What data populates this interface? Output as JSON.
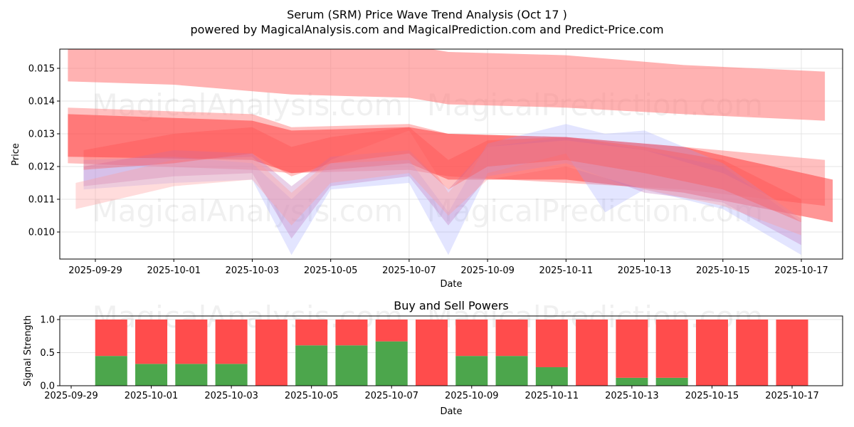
{
  "chart_data": [
    {
      "type": "area",
      "title": "Serum (SRM) Price Wave Trend Analysis (Oct 17 )",
      "subtitle": "powered by MagicalAnalysis.com and MagicalPrediction.com and Predict-Price.com",
      "xlabel": "Date",
      "ylabel": "Price",
      "ylim": [
        0.0092,
        0.0156
      ],
      "xlim": [
        "2025-09-28",
        "2025-10-18"
      ],
      "grid": true,
      "yticks": [
        "0.010",
        "0.011",
        "0.012",
        "0.013",
        "0.014",
        "0.015"
      ],
      "ytick_values": [
        0.01,
        0.011,
        0.012,
        0.013,
        0.014,
        0.015
      ],
      "xticks": [
        "2025-09-29",
        "2025-10-01",
        "2025-10-03",
        "2025-10-05",
        "2025-10-07",
        "2025-10-09",
        "2025-10-11",
        "2025-10-13",
        "2025-10-15",
        "2025-10-17"
      ],
      "watermarks": [
        "MagicalAnalysis.com",
        "MagicalPrediction.com",
        "MagicalAnalysis.com",
        "MagicalPrediction.com"
      ],
      "series": [
        {
          "name": "upper-band",
          "color": "#ff7f7f",
          "opacity": 0.6,
          "x": [
            "2025-09-28.3",
            "2025-10-01",
            "2025-10-04",
            "2025-10-07",
            "2025-10-08",
            "2025-10-11",
            "2025-10-14",
            "2025-10-17.6"
          ],
          "upper": [
            0.016,
            0.016,
            0.0159,
            0.0157,
            0.0155,
            0.0154,
            0.0151,
            0.0149
          ],
          "lower": [
            0.0146,
            0.0145,
            0.0142,
            0.0141,
            0.0139,
            0.0138,
            0.0136,
            0.0134
          ]
        },
        {
          "name": "mid-band-wide",
          "color": "#ff7f7f",
          "opacity": 0.5,
          "x": [
            "2025-09-28.3",
            "2025-10-03",
            "2025-10-04",
            "2025-10-07",
            "2025-10-08",
            "2025-10-11",
            "2025-10-14",
            "2025-10-17.6"
          ],
          "upper": [
            0.0138,
            0.0136,
            0.0132,
            0.0133,
            0.013,
            0.0129,
            0.0126,
            0.0122
          ],
          "lower": [
            0.0121,
            0.0119,
            0.0118,
            0.0119,
            0.0117,
            0.0115,
            0.0113,
            0.0108
          ]
        },
        {
          "name": "mid-band-core",
          "color": "#ff4040",
          "opacity": 0.55,
          "x": [
            "2025-09-28.3",
            "2025-10-03",
            "2025-10-04",
            "2025-10-07",
            "2025-10-08",
            "2025-10-11",
            "2025-10-14",
            "2025-10-17.8"
          ],
          "upper": [
            0.0136,
            0.0134,
            0.0131,
            0.0132,
            0.013,
            0.0129,
            0.0126,
            0.0116
          ],
          "lower": [
            0.0123,
            0.0122,
            0.0118,
            0.0121,
            0.0116,
            0.0116,
            0.0112,
            0.0103
          ]
        },
        {
          "name": "wave-blue-1",
          "color": "#9aa0ff",
          "opacity": 0.28,
          "x": [
            "2025-09-28.7",
            "2025-10-01",
            "2025-10-03",
            "2025-10-04",
            "2025-10-05",
            "2025-10-07",
            "2025-10-08",
            "2025-10-09",
            "2025-10-11",
            "2025-10-12",
            "2025-10-13",
            "2025-10-15",
            "2025-10-17"
          ],
          "upper": [
            0.0122,
            0.0123,
            0.0121,
            0.011,
            0.0121,
            0.0122,
            0.0106,
            0.0127,
            0.0133,
            0.013,
            0.0131,
            0.0121,
            0.0104
          ],
          "lower": [
            0.0113,
            0.0115,
            0.0116,
            0.0093,
            0.0113,
            0.0115,
            0.0093,
            0.0118,
            0.0124,
            0.0106,
            0.0113,
            0.0107,
            0.0093
          ]
        },
        {
          "name": "wave-purple-1",
          "color": "#c07cc0",
          "opacity": 0.35,
          "x": [
            "2025-09-28.7",
            "2025-10-01",
            "2025-10-03",
            "2025-10-04",
            "2025-10-05",
            "2025-10-07",
            "2025-10-08",
            "2025-10-09",
            "2025-10-11",
            "2025-10-13",
            "2025-10-15",
            "2025-10-17"
          ],
          "upper": [
            0.012,
            0.0125,
            0.0124,
            0.0114,
            0.0123,
            0.0125,
            0.0113,
            0.0126,
            0.0129,
            0.0125,
            0.012,
            0.0103
          ],
          "lower": [
            0.0114,
            0.0117,
            0.0118,
            0.0098,
            0.0114,
            0.0117,
            0.0102,
            0.0117,
            0.0121,
            0.0112,
            0.0109,
            0.0096
          ]
        },
        {
          "name": "wave-pink-1",
          "color": "#ff9a9a",
          "opacity": 0.35,
          "x": [
            "2025-09-28.5",
            "2025-10-01",
            "2025-10-03",
            "2025-10-04",
            "2025-10-05",
            "2025-10-07",
            "2025-10-08",
            "2025-10-09",
            "2025-10-11",
            "2025-10-13",
            "2025-10-15",
            "2025-10-17"
          ],
          "upper": [
            0.0115,
            0.0122,
            0.0123,
            0.0112,
            0.0122,
            0.0131,
            0.0112,
            0.0126,
            0.0128,
            0.0125,
            0.0118,
            0.0106
          ],
          "lower": [
            0.0107,
            0.0114,
            0.0116,
            0.0102,
            0.0115,
            0.0118,
            0.0105,
            0.0116,
            0.012,
            0.0113,
            0.0108,
            0.0099
          ]
        },
        {
          "name": "wave-red-1",
          "color": "#ff5050",
          "opacity": 0.35,
          "x": [
            "2025-09-28.7",
            "2025-10-01",
            "2025-10-03",
            "2025-10-04",
            "2025-10-05",
            "2025-10-07",
            "2025-10-08",
            "2025-10-09",
            "2025-10-11",
            "2025-10-13",
            "2025-10-15",
            "2025-10-17"
          ],
          "upper": [
            0.0125,
            0.013,
            0.0132,
            0.0126,
            0.0129,
            0.0132,
            0.0122,
            0.0128,
            0.0129,
            0.0126,
            0.0122,
            0.011
          ],
          "lower": [
            0.0119,
            0.0121,
            0.0124,
            0.0117,
            0.0121,
            0.0124,
            0.0113,
            0.012,
            0.0122,
            0.0118,
            0.0113,
            0.0103
          ]
        }
      ]
    },
    {
      "type": "bar",
      "title": "Buy and Sell Powers",
      "xlabel": "Date",
      "ylabel": "Signal Strength",
      "ylim": [
        0,
        1.05
      ],
      "grid": true,
      "yticks": [
        "0.0",
        "0.5",
        "1.0"
      ],
      "ytick_values": [
        0,
        0.5,
        1.0
      ],
      "xticks": [
        "2025-09-29",
        "2025-10-01",
        "2025-10-03",
        "2025-10-05",
        "2025-10-07",
        "2025-10-09",
        "2025-10-11",
        "2025-10-13",
        "2025-10-15",
        "2025-10-17"
      ],
      "watermarks": [
        "MagicalAnalysis.com",
        "MagicalPrediction.com"
      ],
      "categories": [
        "2025-09-30",
        "2025-10-01",
        "2025-10-02",
        "2025-10-03",
        "2025-10-04",
        "2025-10-05",
        "2025-10-06",
        "2025-10-07",
        "2025-10-08",
        "2025-10-09",
        "2025-10-10",
        "2025-10-11",
        "2025-10-12",
        "2025-10-13",
        "2025-10-14",
        "2025-10-15",
        "2025-10-16",
        "2025-10-17"
      ],
      "series": [
        {
          "name": "Buy",
          "color": "#4ca64c",
          "values": [
            0.45,
            0.33,
            0.33,
            0.33,
            0.0,
            0.61,
            0.61,
            0.67,
            0.0,
            0.45,
            0.45,
            0.28,
            0.0,
            0.12,
            0.12,
            0.0,
            0.0,
            0.0
          ]
        },
        {
          "name": "Sell",
          "color": "#ff4c4c",
          "values": [
            0.55,
            0.67,
            0.67,
            0.67,
            1.0,
            0.39,
            0.39,
            0.33,
            1.0,
            0.55,
            0.55,
            0.72,
            1.0,
            0.88,
            0.88,
            1.0,
            1.0,
            1.0
          ]
        }
      ]
    }
  ]
}
